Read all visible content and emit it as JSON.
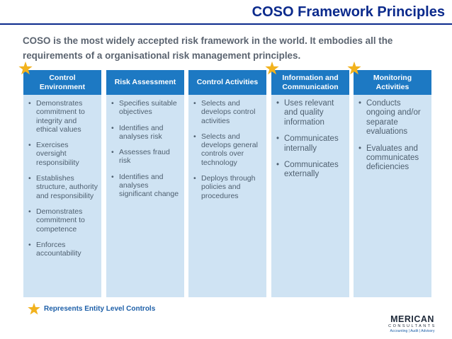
{
  "header": {
    "title": "COSO Framework Principles",
    "intro": "COSO is the most widely accepted risk framework in the world. It embodies all the requirements of a organisational risk management principles."
  },
  "columns": [
    {
      "title": "Control Environment",
      "entity_level": true,
      "items": [
        "Demonstrates commitment to integrity and ethical values",
        "Exercises oversight responsibility",
        "Establishes structure, authority and responsibility",
        "Demonstrates commitment to competence",
        "Enforces accountability"
      ]
    },
    {
      "title": "Risk Assessment",
      "entity_level": false,
      "items": [
        "Specifies suitable objectives",
        "Identifies and analyses risk",
        "Assesses fraud risk",
        "Identifies and analyses significant change"
      ]
    },
    {
      "title": "Control Activities",
      "entity_level": false,
      "items": [
        "Selects and develops control activities",
        "Selects and develops general controls over technology",
        "Deploys through policies and procedures"
      ]
    },
    {
      "title": "Information and Communication",
      "entity_level": true,
      "items": [
        "Uses relevant and quality information",
        "Communicates internally",
        "Communicates externally"
      ]
    },
    {
      "title": "Monitoring Activities",
      "entity_level": true,
      "items": [
        "Conducts ongoing and/or separate evaluations",
        "Evaluates and communicates deficiencies"
      ]
    }
  ],
  "legend": {
    "icon": "star-icon",
    "text": "Represents Entity Level Controls"
  },
  "logo": {
    "name": "MERICAN",
    "sub": "CONSULTANTS",
    "tagline": "Accounting | Audit | Advisory"
  },
  "colors": {
    "title": "#0b2a8c",
    "header_fill": "#1d79c3",
    "body_fill": "#cfe3f3",
    "star": "#f2b21d"
  }
}
